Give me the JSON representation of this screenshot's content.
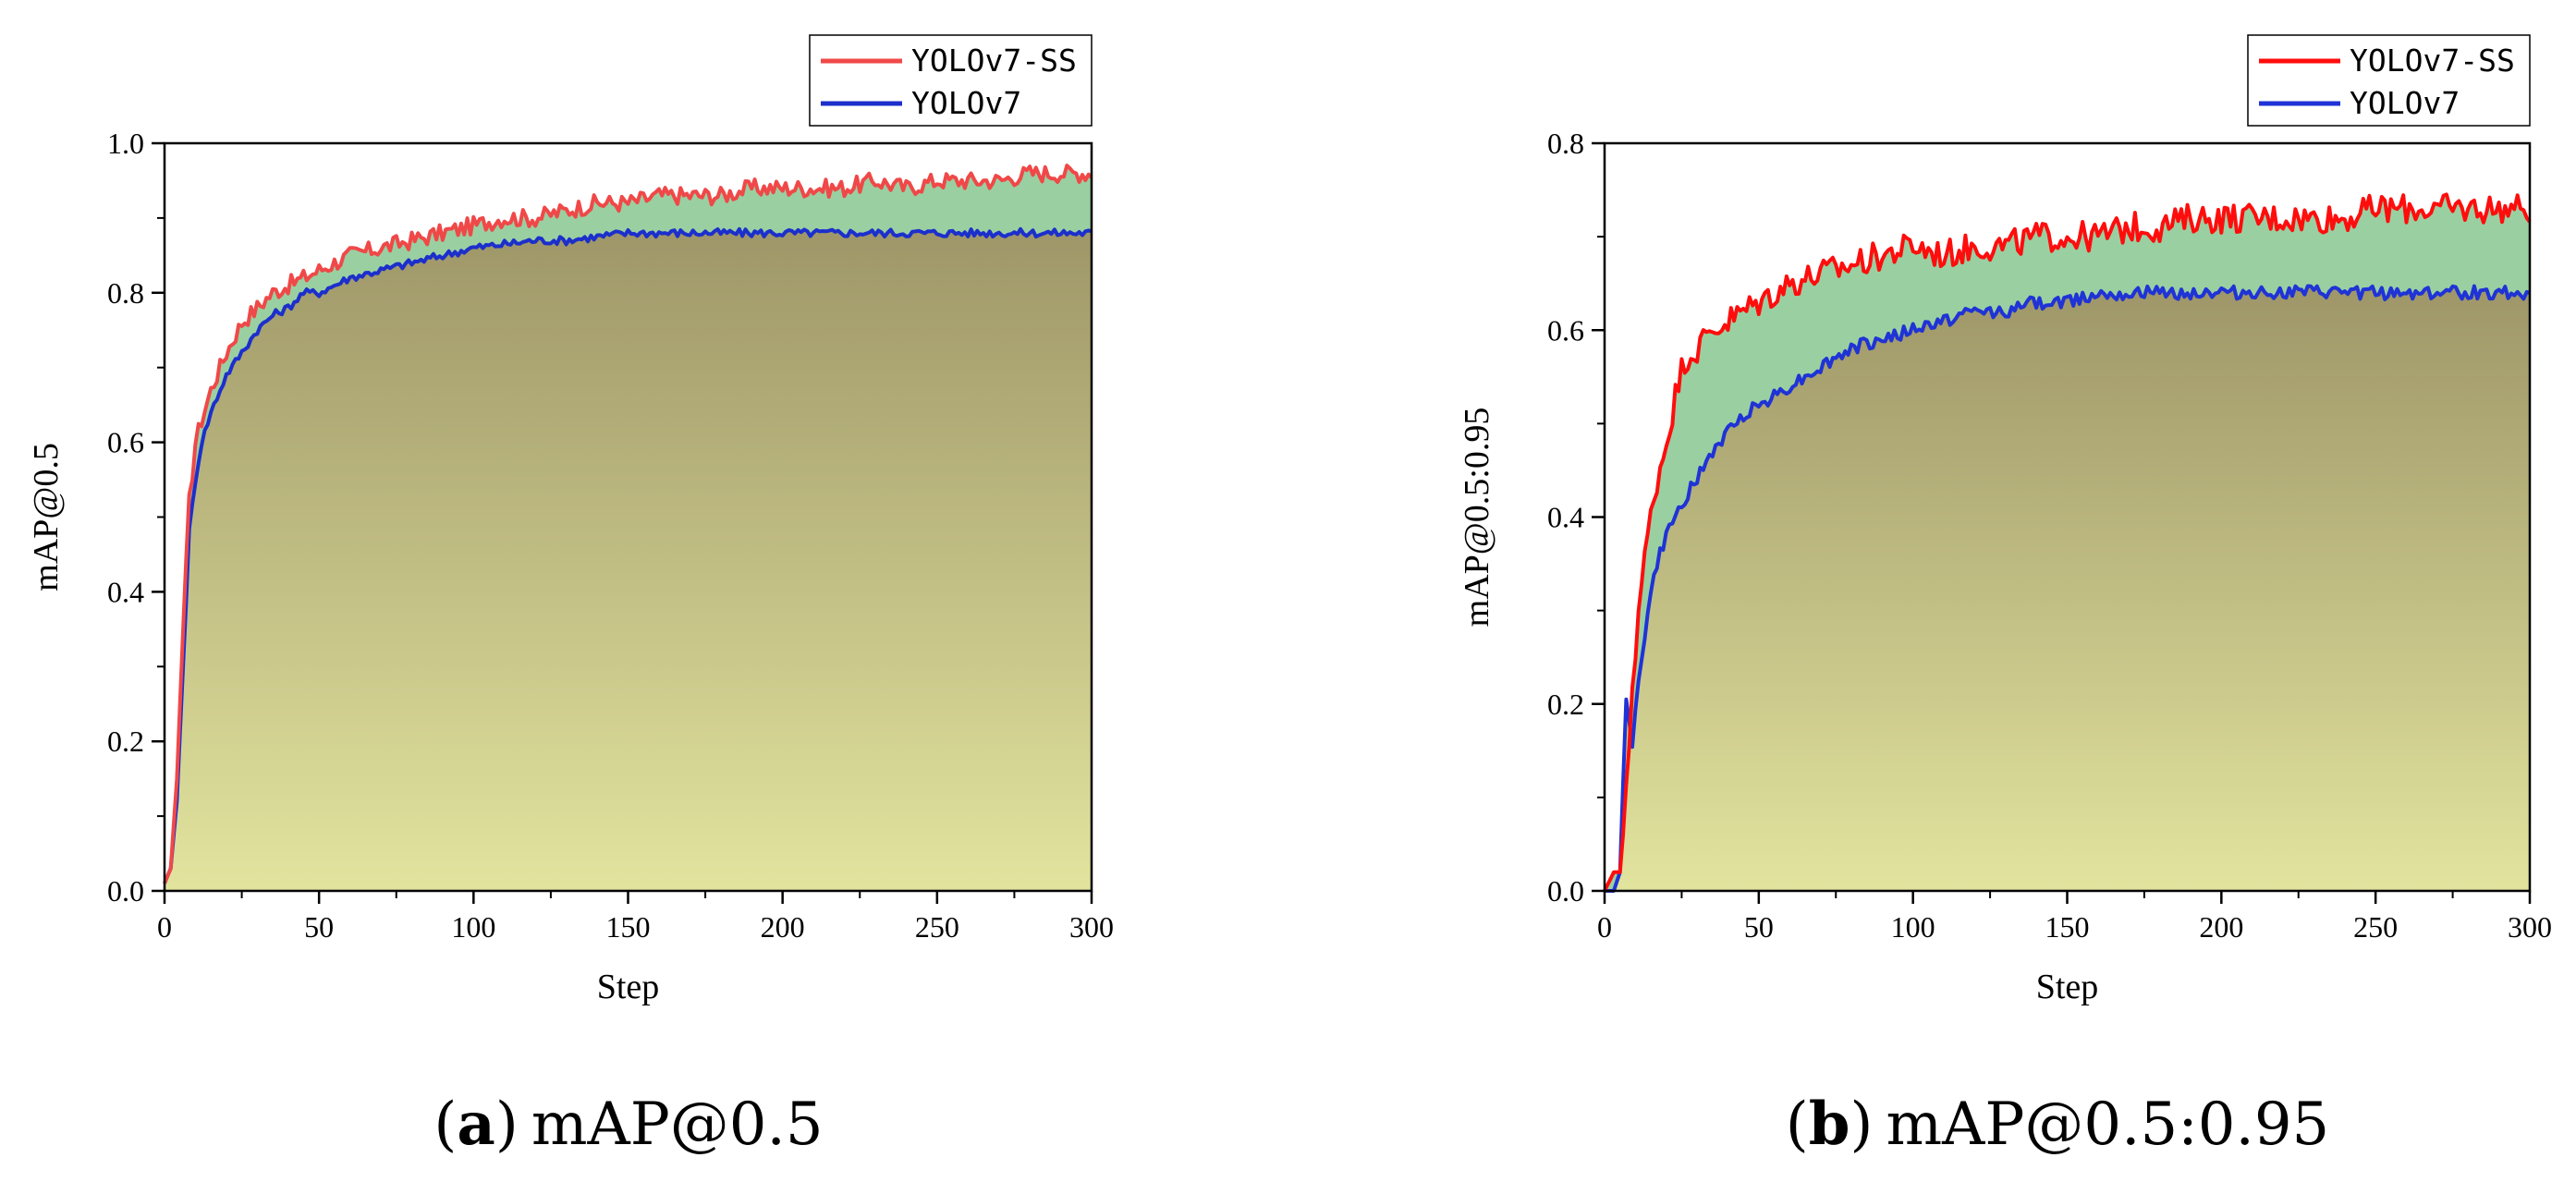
{
  "chart_data": [
    {
      "type": "area",
      "caption": {
        "open": "(",
        "letter": "a",
        "close": ")",
        "text": "mAP@0.5"
      },
      "xlabel": "Step",
      "ylabel": "mAP@0.5",
      "xlim": [
        0,
        300
      ],
      "ylim": [
        0,
        1.0
      ],
      "xticks": [
        0,
        50,
        100,
        150,
        200,
        250,
        300
      ],
      "xtick_labels": [
        "0",
        "50",
        "100",
        "150",
        "200",
        "250",
        "300"
      ],
      "yticks": [
        0,
        0.2,
        0.4,
        0.6,
        0.8,
        1.0
      ],
      "ytick_labels": [
        "0.0",
        "0.2",
        "0.4",
        "0.6",
        "0.8",
        "1.0"
      ],
      "legend": {
        "position": "top-right",
        "entries": [
          "YOLOv7-SS",
          "YOLOv7"
        ]
      },
      "series": [
        {
          "name": "YOLOv7-SS",
          "color": "#f04848",
          "x": [
            0,
            2,
            4,
            6,
            8,
            10,
            12,
            15,
            18,
            20,
            25,
            30,
            35,
            40,
            45,
            50,
            60,
            70,
            80,
            90,
            100,
            110,
            120,
            130,
            140,
            150,
            160,
            170,
            180,
            190,
            200,
            210,
            220,
            230,
            240,
            250,
            260,
            270,
            280,
            290,
            300
          ],
          "y": [
            0.01,
            0.03,
            0.15,
            0.35,
            0.52,
            0.6,
            0.63,
            0.67,
            0.7,
            0.72,
            0.76,
            0.78,
            0.8,
            0.81,
            0.82,
            0.83,
            0.85,
            0.86,
            0.87,
            0.88,
            0.89,
            0.9,
            0.9,
            0.91,
            0.92,
            0.92,
            0.93,
            0.93,
            0.93,
            0.94,
            0.94,
            0.94,
            0.94,
            0.95,
            0.94,
            0.95,
            0.95,
            0.95,
            0.96,
            0.96,
            0.96
          ]
        },
        {
          "name": "YOLOv7",
          "color": "#1c2fcc",
          "x": [
            0,
            2,
            4,
            6,
            8,
            10,
            12,
            15,
            18,
            20,
            25,
            30,
            35,
            40,
            45,
            50,
            60,
            70,
            80,
            90,
            100,
            110,
            120,
            130,
            140,
            150,
            160,
            170,
            180,
            190,
            200,
            210,
            220,
            230,
            240,
            250,
            260,
            270,
            280,
            290,
            300
          ],
          "y": [
            0.01,
            0.03,
            0.12,
            0.3,
            0.48,
            0.55,
            0.6,
            0.64,
            0.67,
            0.69,
            0.72,
            0.75,
            0.77,
            0.78,
            0.8,
            0.8,
            0.82,
            0.83,
            0.84,
            0.85,
            0.86,
            0.865,
            0.87,
            0.87,
            0.875,
            0.88,
            0.88,
            0.88,
            0.88,
            0.88,
            0.88,
            0.88,
            0.88,
            0.88,
            0.88,
            0.88,
            0.88,
            0.88,
            0.88,
            0.88,
            0.88
          ]
        }
      ]
    },
    {
      "type": "area",
      "caption": {
        "open": "(",
        "letter": "b",
        "close": ")",
        "text": "mAP@0.5:0.95"
      },
      "xlabel": "Step",
      "ylabel": "mAP@0.5:0.95",
      "xlim": [
        0,
        300
      ],
      "ylim": [
        0,
        0.8
      ],
      "xticks": [
        0,
        50,
        100,
        150,
        200,
        250,
        300
      ],
      "xtick_labels": [
        "0",
        "50",
        "100",
        "150",
        "200",
        "250",
        "300"
      ],
      "yticks": [
        0,
        0.2,
        0.4,
        0.6,
        0.8
      ],
      "ytick_labels": [
        "0.0",
        "0.2",
        "0.4",
        "0.6",
        "0.8"
      ],
      "legend": {
        "position": "top-right",
        "entries": [
          "YOLOv7-SS",
          "YOLOv7"
        ]
      },
      "series": [
        {
          "name": "YOLOv7-SS",
          "color": "#ff0d0d",
          "x": [
            0,
            3,
            5,
            7,
            9,
            11,
            14,
            17,
            20,
            23,
            26,
            30,
            35,
            40,
            45,
            50,
            60,
            70,
            80,
            90,
            100,
            110,
            120,
            130,
            140,
            150,
            160,
            170,
            180,
            190,
            200,
            210,
            220,
            230,
            240,
            250,
            260,
            270,
            280,
            290,
            300
          ],
          "y": [
            0.0,
            0.02,
            0.02,
            0.1,
            0.22,
            0.3,
            0.38,
            0.44,
            0.48,
            0.53,
            0.57,
            0.58,
            0.6,
            0.61,
            0.62,
            0.63,
            0.65,
            0.66,
            0.67,
            0.68,
            0.69,
            0.68,
            0.69,
            0.69,
            0.7,
            0.7,
            0.7,
            0.71,
            0.71,
            0.72,
            0.72,
            0.72,
            0.72,
            0.72,
            0.72,
            0.73,
            0.73,
            0.73,
            0.73,
            0.73,
            0.73
          ]
        },
        {
          "name": "YOLOv7",
          "color": "#1f33d6",
          "x": [
            0,
            3,
            5,
            7,
            9,
            11,
            14,
            17,
            20,
            23,
            26,
            30,
            35,
            40,
            45,
            50,
            60,
            70,
            80,
            90,
            100,
            110,
            120,
            130,
            140,
            150,
            160,
            170,
            180,
            190,
            200,
            210,
            220,
            230,
            240,
            250,
            260,
            270,
            280,
            290,
            300
          ],
          "y": [
            0.0,
            0.0,
            0.02,
            0.21,
            0.16,
            0.22,
            0.3,
            0.35,
            0.38,
            0.4,
            0.42,
            0.44,
            0.47,
            0.49,
            0.51,
            0.52,
            0.54,
            0.56,
            0.58,
            0.59,
            0.6,
            0.61,
            0.62,
            0.62,
            0.63,
            0.63,
            0.64,
            0.64,
            0.64,
            0.64,
            0.64,
            0.64,
            0.64,
            0.64,
            0.64,
            0.64,
            0.64,
            0.64,
            0.64,
            0.64,
            0.64
          ]
        }
      ]
    }
  ],
  "colors": {
    "gap_fill": "#8fcb97",
    "area_top": "#9e9668",
    "area_bottom": "#e2e49e"
  }
}
